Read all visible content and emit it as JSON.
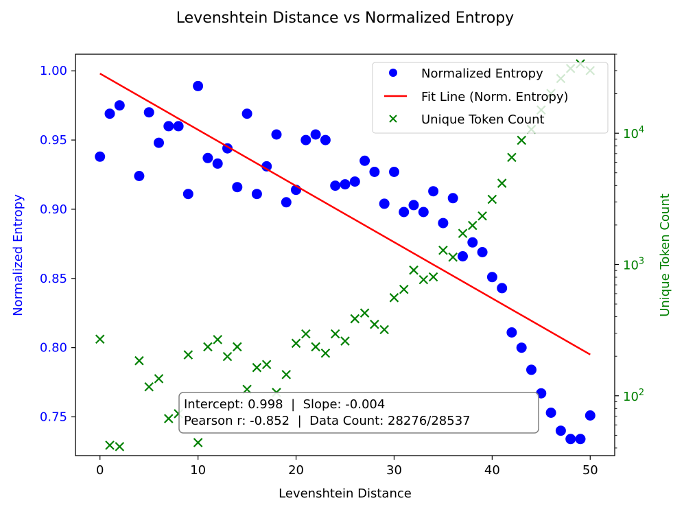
{
  "chart_data": {
    "type": "scatter",
    "title": "Levenshtein Distance vs Normalized Entropy",
    "xlabel": "Levenshtein Distance",
    "ylabel_left": "Normalized Entropy",
    "ylabel_right": "Unique Token Count",
    "xlim": [
      -2.5,
      52.5
    ],
    "ylim_left": [
      0.722,
      1.012
    ],
    "ylim_right": [
      35,
      40000
    ],
    "y_right_scale": "log",
    "x_ticks": [
      0,
      10,
      20,
      30,
      40,
      50
    ],
    "x_tick_labels": [
      "0",
      "10",
      "20",
      "30",
      "40",
      "50"
    ],
    "y_left_ticks": [
      0.75,
      0.8,
      0.85,
      0.9,
      0.95,
      1.0
    ],
    "y_left_tick_labels": [
      "0.75",
      "0.80",
      "0.85",
      "0.90",
      "0.95",
      "1.00"
    ],
    "y_right_major_ticks": [
      100,
      1000,
      10000
    ],
    "y_right_tick_labels": [
      {
        "base": "10",
        "exp": "2"
      },
      {
        "base": "10",
        "exp": "3"
      },
      {
        "base": "10",
        "exp": "4"
      }
    ],
    "grid": false,
    "legend_position": "top-right",
    "colors": {
      "entropy": "#0000ff",
      "fit": "#ff0000",
      "tokens": "#008000",
      "axis": "#000000"
    },
    "series": [
      {
        "name": "Normalized Entropy",
        "kind": "scatter-circle",
        "axis": "left",
        "x": [
          0,
          1,
          2,
          4,
          5,
          6,
          7,
          8,
          9,
          10,
          11,
          12,
          13,
          14,
          15,
          16,
          17,
          18,
          19,
          20,
          21,
          22,
          23,
          24,
          25,
          26,
          27,
          28,
          29,
          30,
          31,
          32,
          33,
          34,
          35,
          36,
          37,
          38,
          39,
          40,
          41,
          42,
          43,
          44,
          45,
          46,
          47,
          48,
          49,
          50
        ],
        "y": [
          0.938,
          0.969,
          0.975,
          0.924,
          0.97,
          0.948,
          0.96,
          0.96,
          0.911,
          0.989,
          0.937,
          0.933,
          0.944,
          0.916,
          0.969,
          0.911,
          0.931,
          0.954,
          0.905,
          0.914,
          0.95,
          0.954,
          0.95,
          0.917,
          0.918,
          0.92,
          0.935,
          0.927,
          0.904,
          0.927,
          0.898,
          0.903,
          0.898,
          0.913,
          0.89,
          0.908,
          0.866,
          0.876,
          0.869,
          0.851,
          0.843,
          0.811,
          0.8,
          0.784,
          0.767,
          0.753,
          0.74,
          0.734,
          0.734,
          0.751
        ]
      },
      {
        "name": "Fit Line (Norm. Entropy)",
        "kind": "line",
        "axis": "left",
        "x": [
          0,
          50
        ],
        "y": [
          0.998,
          0.795
        ]
      },
      {
        "name": "Unique Token Count",
        "kind": "scatter-x",
        "axis": "right",
        "x": [
          0,
          1,
          2,
          4,
          5,
          6,
          7,
          8,
          9,
          10,
          11,
          12,
          13,
          14,
          15,
          16,
          17,
          18,
          19,
          20,
          21,
          22,
          23,
          24,
          25,
          26,
          27,
          28,
          29,
          30,
          31,
          32,
          33,
          34,
          35,
          36,
          37,
          38,
          39,
          40,
          41,
          42,
          43,
          44,
          45,
          46,
          47,
          48,
          49,
          50
        ],
        "y": [
          270,
          42,
          41,
          185,
          117,
          135,
          67,
          73,
          205,
          44,
          236,
          268,
          199,
          236,
          112,
          164,
          173,
          106,
          145,
          251,
          296,
          236,
          211,
          296,
          261,
          386,
          427,
          350,
          319,
          559,
          646,
          906,
          766,
          804,
          1283,
          1138,
          1726,
          1984,
          2342,
          3136,
          4158,
          6544,
          8838,
          10697,
          15049,
          20120,
          26104,
          31138,
          33794,
          30000
        ]
      }
    ],
    "annotation": {
      "line1": "Intercept: 0.998  |  Slope: -0.004",
      "line2": "Pearson r: -0.852  |  Data Count: 28276/28537"
    }
  }
}
